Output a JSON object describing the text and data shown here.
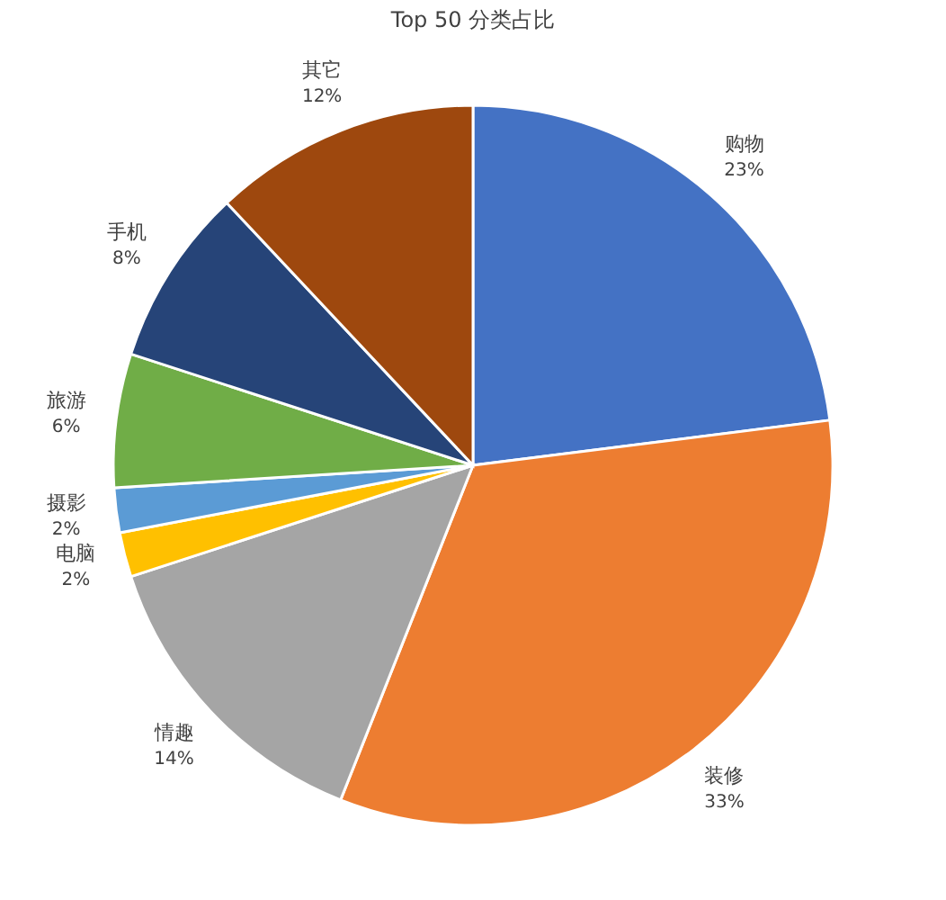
{
  "chart_data": {
    "type": "pie",
    "title": "Top 50 分类占比",
    "categories": [
      "购物",
      "装修",
      "情趣",
      "电脑",
      "摄影",
      "旅游",
      "手机",
      "其它"
    ],
    "values": [
      23,
      33,
      14,
      2,
      2,
      6,
      8,
      12
    ],
    "value_labels": [
      "23%",
      "33%",
      "14%",
      "2%",
      "2%",
      "6%",
      "8%",
      "12%"
    ],
    "colors": [
      "#4472c4",
      "#ed7d31",
      "#a5a5a5",
      "#ffc000",
      "#5b9bd5",
      "#70ad47",
      "#264478",
      "#9e480e"
    ],
    "legend": false
  }
}
